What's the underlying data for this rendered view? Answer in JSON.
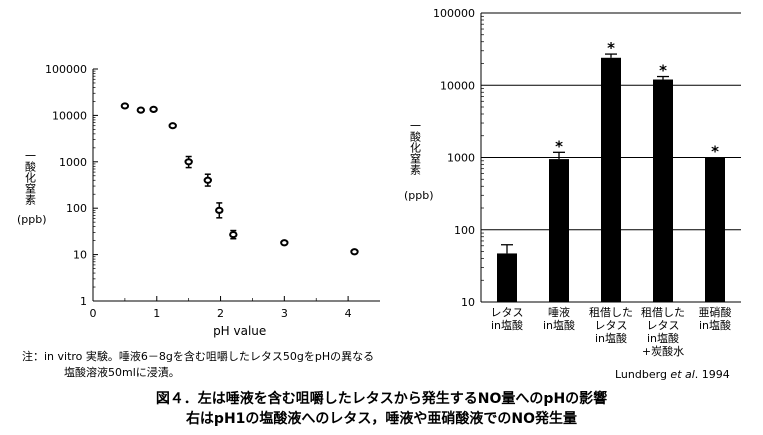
{
  "chart_data": [
    {
      "type": "scatter",
      "ylabel": "一酸化窒素",
      "yunit": "(ppb)",
      "xlabel": "pH value",
      "log_y": true,
      "ylim": [
        1,
        100000
      ],
      "xlim": [
        0,
        4.5
      ],
      "x_ticks": [
        "0",
        "1",
        "2",
        "3",
        "4"
      ],
      "y_ticks": [
        "1",
        "10",
        "100",
        "1000",
        "10000",
        "100000"
      ],
      "points": [
        {
          "x": 0.5,
          "y": 16000
        },
        {
          "x": 0.75,
          "y": 13000
        },
        {
          "x": 0.95,
          "y": 13500
        },
        {
          "x": 1.25,
          "y": 6000
        },
        {
          "x": 1.5,
          "y": 1000,
          "err_lo": 750,
          "err_hi": 1300
        },
        {
          "x": 1.8,
          "y": 400,
          "err_lo": 300,
          "err_hi": 540
        },
        {
          "x": 1.98,
          "y": 90,
          "err_lo": 62,
          "err_hi": 130
        },
        {
          "x": 2.2,
          "y": 27,
          "err_lo": 22,
          "err_hi": 33
        },
        {
          "x": 3.0,
          "y": 18
        },
        {
          "x": 4.1,
          "y": 11.5
        }
      ]
    },
    {
      "type": "bar",
      "ylabel": "一酸化窒素",
      "yunit": "(ppb)",
      "log_y": true,
      "ylim": [
        10,
        100000
      ],
      "y_ticks": [
        "10",
        "100",
        "1000",
        "10000",
        "100000"
      ],
      "grid": true,
      "categories": [
        [
          "レタス",
          "in塩酸"
        ],
        [
          "唾液",
          "in塩酸"
        ],
        [
          "租借した",
          "レタス",
          "in塩酸"
        ],
        [
          "租借した",
          "レタス",
          "in塩酸",
          "+炭酸水"
        ],
        [
          "亜硝酸",
          "in塩酸"
        ]
      ],
      "values": [
        47,
        950,
        24000,
        12000,
        1000
      ],
      "error_hi": [
        62,
        1180,
        27000,
        13200,
        0
      ],
      "markers": [
        "",
        "*",
        "*",
        "*",
        "*"
      ]
    }
  ],
  "note": {
    "line1": "注：in vitro 実験。唾液6－8gを含む咀嚼したレタス50gをpHの異なる",
    "line2": "塩酸溶液50mlに浸漬。"
  },
  "source": {
    "authors": "Lundberg ",
    "etal": "et al",
    "year": ". 1994"
  },
  "caption": {
    "line1": "図４．左は唾液を含む咀嚼したレタスから発生するNO量へのpHの影響",
    "line2": "右はpH1の塩酸液へのレタス，唾液や亜硝酸液でのNO発生量"
  }
}
